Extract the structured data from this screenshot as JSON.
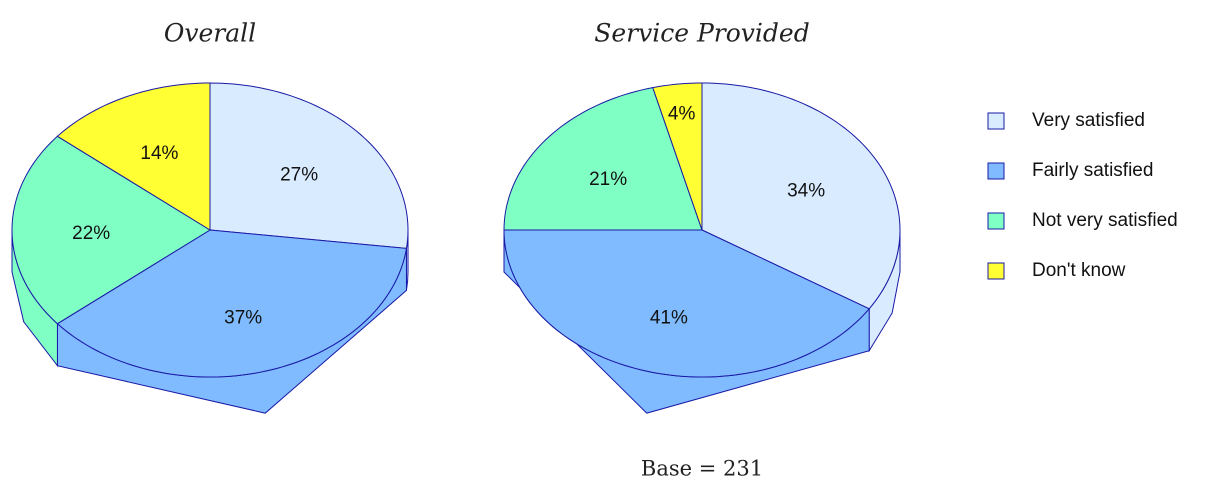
{
  "chart_data": [
    {
      "type": "pie",
      "title": "Overall",
      "categories": [
        "Very satisfied",
        "Fairly satisfied",
        "Not very satisfied",
        "Don't know"
      ],
      "colors": [
        "#d9ebff",
        "#80bbff",
        "#80ffc4",
        "#ffff33"
      ],
      "values": [
        27,
        37,
        22,
        14
      ],
      "value_labels": [
        "27%",
        "37%",
        "22%",
        "14%"
      ],
      "legend": "right"
    },
    {
      "type": "pie",
      "title": "Service Provided",
      "values": [
        34,
        41,
        21,
        4
      ],
      "value_labels": [
        "34%",
        "41%",
        "21%",
        "4%"
      ],
      "annotation": "Base = 231"
    }
  ]
}
